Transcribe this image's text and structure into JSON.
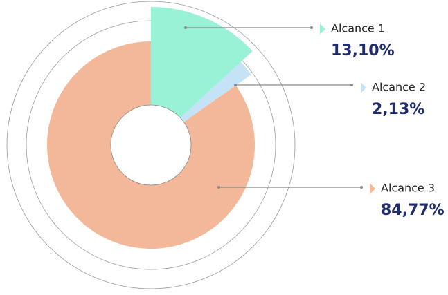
{
  "chart_data": {
    "type": "pie",
    "categories": [
      "Alcance 1",
      "Alcance 2",
      "Alcance 3"
    ],
    "values": [
      13.1,
      2.13,
      84.77
    ],
    "value_labels": [
      "13,10%",
      "2,13%",
      "84,77%"
    ],
    "colors": [
      "#9af2d6",
      "#c5e3f7",
      "#f3b89a"
    ]
  }
}
